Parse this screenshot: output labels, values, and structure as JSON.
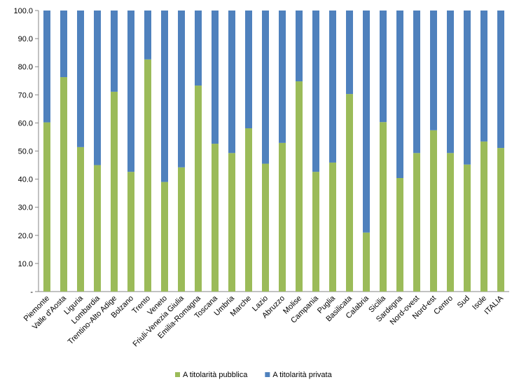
{
  "chart_data": {
    "type": "stacked_bar",
    "categories": [
      "Piemonte",
      "Valle d'Aosta",
      "Liguria",
      "Lombardia",
      "Trentino-Alto Adige",
      "Bolzano",
      "Trento",
      "Veneto",
      "Friuli-Venezia Giulia",
      "Emilia-Romagna",
      "Toscana",
      "Umbria",
      "Marche",
      "Lazio",
      "Abruzzo",
      "Molise",
      "Campania",
      "Puglia",
      "Basilicata",
      "Calabria",
      "Sicilia",
      "Sardegna",
      "Nord-ovest",
      "Nord-est",
      "Centro",
      "Sud",
      "Isole",
      "ITALIA"
    ],
    "series": [
      {
        "name": "A titolarità pubblica",
        "color": "#9bbb59",
        "values": [
          60.2,
          76.3,
          51.4,
          45.0,
          71.1,
          42.6,
          82.6,
          39.0,
          44.2,
          73.3,
          52.6,
          49.3,
          58.1,
          45.5,
          52.9,
          74.8,
          42.6,
          45.9,
          70.3,
          21.0,
          60.3,
          40.4,
          49.3,
          57.4,
          49.3,
          45.2,
          53.4,
          51.1
        ]
      },
      {
        "name": "A titolarità privata",
        "color": "#4f81bd",
        "values": [
          39.8,
          23.7,
          48.6,
          55.0,
          28.9,
          57.4,
          17.4,
          61.0,
          55.8,
          26.7,
          47.4,
          50.7,
          41.9,
          54.5,
          47.1,
          25.2,
          57.4,
          54.1,
          29.7,
          79.0,
          39.7,
          59.6,
          50.7,
          42.6,
          50.7,
          54.8,
          46.6,
          48.9
        ]
      }
    ],
    "ylim": [
      0,
      100
    ],
    "yticks": [
      {
        "value": 0,
        "label": "-"
      },
      {
        "value": 10,
        "label": "10.0"
      },
      {
        "value": 20,
        "label": "20.0"
      },
      {
        "value": 30,
        "label": "30.0"
      },
      {
        "value": 40,
        "label": "40.0"
      },
      {
        "value": 50,
        "label": "50.0"
      },
      {
        "value": 60,
        "label": "60.0"
      },
      {
        "value": 70,
        "label": "70.0"
      },
      {
        "value": 80,
        "label": "80.0"
      },
      {
        "value": 90,
        "label": "90.0"
      },
      {
        "value": 100,
        "label": "100.0"
      }
    ],
    "legend": "bottom"
  }
}
